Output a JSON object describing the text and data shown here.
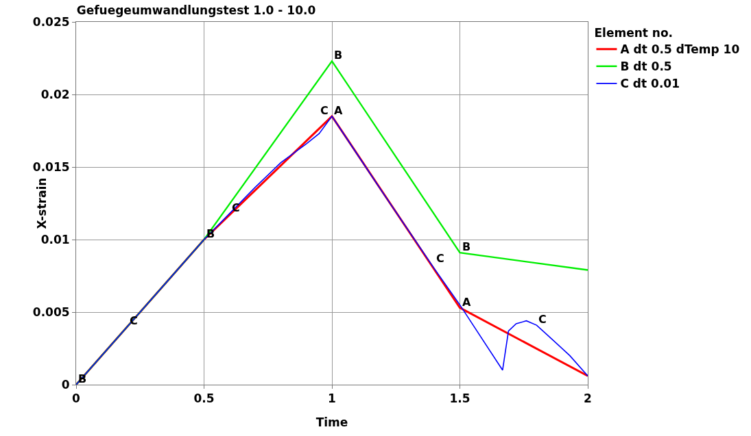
{
  "chart_data": {
    "type": "line",
    "title": "Gefuegeumwandlungstest 1.0 - 10.0",
    "xlabel": "Time",
    "ylabel": "X-strain",
    "legend_title": "Element no.",
    "series": [
      {
        "name": "A dt 0.5 dTemp 10",
        "color": "#ff0000",
        "x": [
          0,
          0.5,
          1,
          1.5,
          2
        ],
        "values": [
          0,
          0.01,
          0.0185,
          0.0053,
          0.0006
        ]
      },
      {
        "name": "B dt 0.5",
        "color": "#00ee00",
        "x": [
          0,
          0.5,
          1,
          1.5,
          2
        ],
        "values": [
          0,
          0.01,
          0.0223,
          0.0091,
          0.0079
        ]
      },
      {
        "name": "C dt 0.01",
        "color": "#0000ff",
        "x": [
          0,
          0.2,
          0.5,
          0.6,
          0.7,
          0.8,
          0.9,
          0.95,
          1,
          1.2,
          1.4,
          1.5,
          1.667,
          1.69,
          1.72,
          1.76,
          1.8,
          1.85,
          1.93,
          2
        ],
        "values": [
          0,
          0.004,
          0.01,
          0.0118,
          0.0136,
          0.0153,
          0.0166,
          0.0173,
          0.0185,
          0.0132,
          0.008,
          0.0055,
          0.001,
          0.0037,
          0.0042,
          0.0044,
          0.0041,
          0.0033,
          0.002,
          0.0006
        ]
      }
    ],
    "annotations": [
      {
        "text": "B",
        "x": 0,
        "y": 0
      },
      {
        "text": "B",
        "x": 0.5,
        "y": 0.01
      },
      {
        "text": "B",
        "x": 1,
        "y": 0.0223
      },
      {
        "text": "B",
        "x": 1.5,
        "y": 0.0091
      },
      {
        "text": "A",
        "x": 1,
        "y": 0.0185
      },
      {
        "text": "A",
        "x": 1.5,
        "y": 0.0053
      },
      {
        "text": "C",
        "x": 0.2,
        "y": 0.004
      },
      {
        "text": "C",
        "x": 0.6,
        "y": 0.0118
      },
      {
        "text": "C",
        "x": 1,
        "y": 0.0185
      },
      {
        "text": "C",
        "x": 1.4,
        "y": 0.0083
      },
      {
        "text": "C",
        "x": 1.8,
        "y": 0.0041
      }
    ],
    "xlim": [
      0,
      2
    ],
    "xticks": [
      0,
      0.5,
      1,
      1.5,
      2
    ],
    "ylim": [
      0,
      0.025
    ],
    "yticks": [
      0,
      0.005,
      0.01,
      0.015,
      0.02,
      0.025
    ],
    "grid": true,
    "legend": "top right",
    "marker": "none",
    "line_style": "solid"
  }
}
